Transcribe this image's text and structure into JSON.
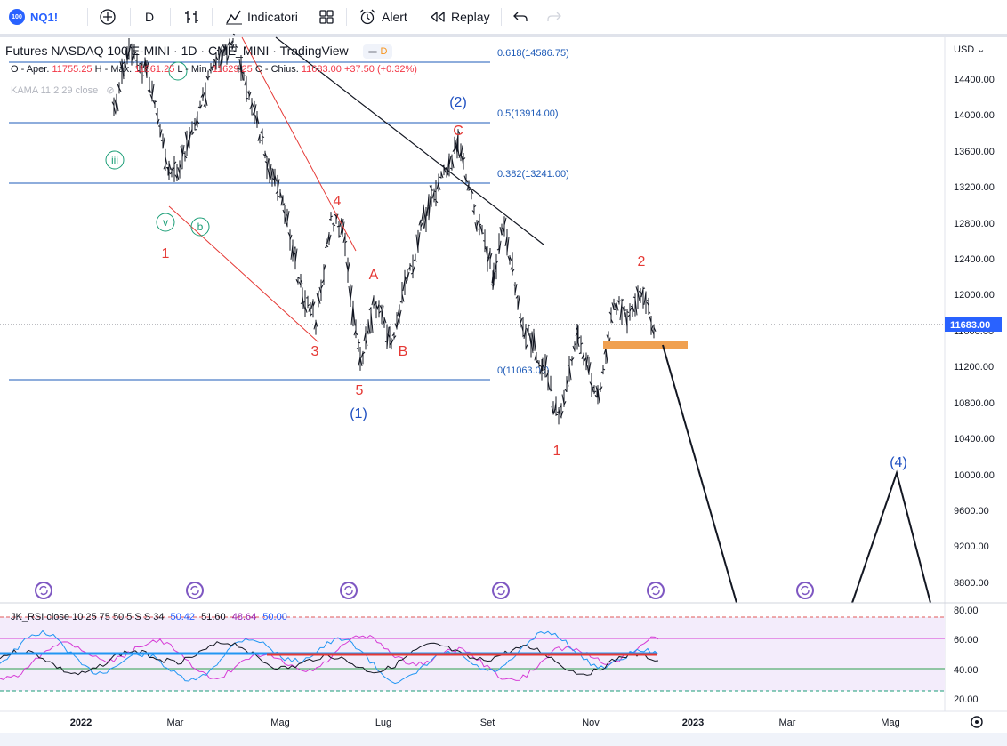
{
  "toolbar": {
    "logo_text": "100",
    "symbol": "NQ1!",
    "interval": "D",
    "indicators_label": "Indicatori",
    "alert_label": "Alert",
    "replay_label": "Replay"
  },
  "legend": {
    "title": "Futures NASDAQ 100 E-MINI · 1D · CME_MINI · TradingView",
    "badge": "D",
    "ohlc": {
      "open_label": "O - Aper.",
      "open": "11755.25",
      "high_label": "H - Max.",
      "high": "11861.25",
      "low_label": "L - Min.",
      "low": "11629.25",
      "close_label": "C - Chius.",
      "close": "11683.00",
      "change": "+37.50 (+0.32%)"
    },
    "kama": "KAMA 11 2 29 close"
  },
  "price_axis": {
    "currency": "USD",
    "ticks": [
      "14400.00",
      "14000.00",
      "13600.00",
      "13200.00",
      "12800.00",
      "12400.00",
      "12000.00",
      "11600.00",
      "11200.00",
      "10800.00",
      "10400.00",
      "10000.00",
      "9600.00",
      "9200.00",
      "8800.00"
    ],
    "last_price": "11683.00"
  },
  "fib_labels": [
    "0.618(14586.75)",
    "0.5(13914.00)",
    "0.382(13241.00)",
    "0(11063.00)"
  ],
  "wave_labels": {
    "minor_red": [
      "1",
      "3",
      "4",
      "5",
      "A",
      "B",
      "C",
      "2",
      "1"
    ],
    "major_blue": [
      "(1)",
      "(2)",
      "(4)"
    ],
    "green_circles": [
      "iii",
      "v",
      "b"
    ]
  },
  "rsi": {
    "legend": "JK_RSI close 10 25 75 50 5 S S 34",
    "values": [
      "50.42",
      "51.60",
      "48.64",
      "50.00"
    ],
    "value_colors": [
      "#2962ff",
      "#131722",
      "#9c27b0",
      "#2962ff"
    ],
    "ticks": [
      "80.00",
      "60.00",
      "40.00",
      "20.00"
    ]
  },
  "time_axis": [
    "2022",
    "Mar",
    "Mag",
    "Lug",
    "Set",
    "Nov",
    "2023",
    "Mar",
    "Mag"
  ],
  "colors": {
    "accent": "#2962ff",
    "red_wave": "#e53935",
    "blue_wave": "#1e4fc1",
    "green_wave": "#1b9e77",
    "fib": "#1e5bb8",
    "support_box": "#f0a050",
    "price_badge": "#2962ff",
    "rsi_fill": "#f3ecfb"
  }
}
